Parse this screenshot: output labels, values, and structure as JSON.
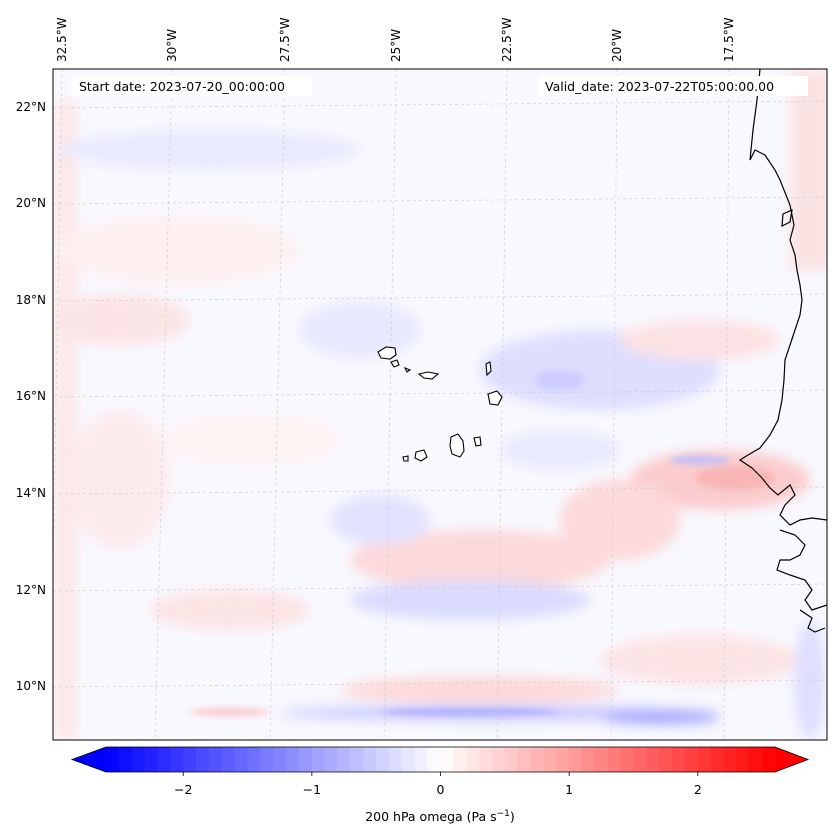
{
  "map": {
    "start_date_text": "Start date: 2023-07-20_00:00:00",
    "valid_date_text": "Valid_date: 2023-07-22T05:00:00.00",
    "longitude_labels": [
      "32.5°W",
      "30°W",
      "27.5°W",
      "25°W",
      "22.5°W",
      "20°W",
      "17.5°W"
    ],
    "latitude_labels": [
      "22°N",
      "20°N",
      "18°N",
      "16°N",
      "14°N",
      "12°N",
      "10°N"
    ],
    "coastline_color": "#000000",
    "gridline_color": "#c8c8c8"
  },
  "colorbar": {
    "tick_labels": [
      "−2",
      "−1",
      "0",
      "1",
      "2"
    ],
    "tick_values": [
      -2,
      -1,
      0,
      1,
      2
    ],
    "range": [
      -2.6,
      2.6
    ],
    "label_main": "200 hPa omega (Pa s",
    "label_sup": "−1",
    "label_end": ")",
    "colors": {
      "negative": "#0000ff",
      "zero": "#ffffff",
      "positive": "#ff0000"
    },
    "extend": "both"
  }
}
